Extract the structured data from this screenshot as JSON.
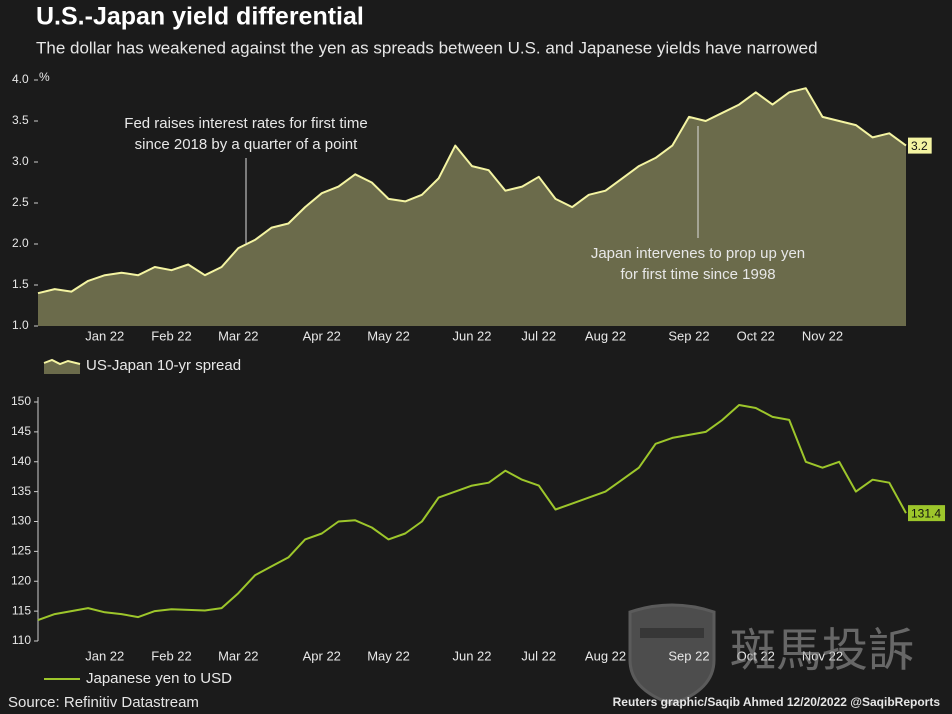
{
  "header": {
    "title": "U.S.-Japan yield differential",
    "subtitle": "The dollar has weakened against the yen as spreads between U.S. and Japanese yields have narrowed"
  },
  "chart_data": [
    {
      "type": "area",
      "y_unit": "%",
      "categories": [
        null,
        null,
        null,
        null,
        "Jan 22",
        null,
        null,
        null,
        "Feb 22",
        null,
        null,
        null,
        "Mar 22",
        null,
        null,
        null,
        null,
        "Apr 22",
        null,
        null,
        null,
        "May 22",
        null,
        null,
        null,
        null,
        "Jun 22",
        null,
        null,
        null,
        "Jul 22",
        null,
        null,
        null,
        "Aug 22",
        null,
        null,
        null,
        null,
        "Sep 22",
        null,
        null,
        null,
        "Oct 22",
        null,
        null,
        null,
        "Nov 22",
        null,
        null,
        null,
        null,
        null
      ],
      "series": [
        {
          "name": "US-Japan 10-yr spread",
          "color": "#f4f4a2",
          "fill": "#6b6b4b",
          "values": [
            1.4,
            1.45,
            1.42,
            1.55,
            1.62,
            1.65,
            1.62,
            1.72,
            1.68,
            1.75,
            1.62,
            1.72,
            1.95,
            2.05,
            2.2,
            2.25,
            2.45,
            2.62,
            2.7,
            2.85,
            2.75,
            2.55,
            2.52,
            2.6,
            2.8,
            3.2,
            2.95,
            2.9,
            2.65,
            2.7,
            2.82,
            2.55,
            2.45,
            2.6,
            2.65,
            2.8,
            2.95,
            3.05,
            3.2,
            3.55,
            3.5,
            3.6,
            3.7,
            3.85,
            3.7,
            3.85,
            3.9,
            3.55,
            3.5,
            3.45,
            3.3,
            3.35,
            3.2
          ]
        }
      ],
      "ylim": [
        1,
        4
      ],
      "yticks": [
        {
          "value": 1,
          "label": "1.0"
        },
        1.5,
        {
          "value": 2,
          "label": "2.0"
        },
        2.5,
        {
          "value": 3,
          "label": "3.0"
        },
        3.5,
        {
          "value": 4,
          "label": "4.0"
        }
      ],
      "annotations": [
        {
          "text": [
            "Fed raises interest rates for first time",
            "since 2018 by a quarter of a point"
          ]
        },
        {
          "text": [
            "Japan intervenes to prop up yen",
            "for first time since 1998"
          ]
        }
      ]
    },
    {
      "type": "line",
      "categories": [
        null,
        null,
        null,
        null,
        "Jan 22",
        null,
        null,
        null,
        "Feb 22",
        null,
        null,
        null,
        "Mar 22",
        null,
        null,
        null,
        null,
        "Apr 22",
        null,
        null,
        null,
        "May 22",
        null,
        null,
        null,
        null,
        "Jun 22",
        null,
        null,
        null,
        "Jul 22",
        null,
        null,
        null,
        "Aug 22",
        null,
        null,
        null,
        null,
        "Sep 22",
        null,
        null,
        null,
        "Oct 22",
        null,
        null,
        null,
        "Nov 22",
        null,
        null,
        null,
        null,
        null
      ],
      "series": [
        {
          "name": "Japanese yen to USD",
          "color": "#9dc62b",
          "values": [
            113.5,
            114.5,
            115,
            115.5,
            114.8,
            114.5,
            114,
            115,
            115.3,
            115.2,
            115.1,
            115.5,
            118,
            121,
            122.5,
            124,
            127,
            128,
            130,
            130.2,
            129,
            127,
            128,
            130,
            134,
            135,
            136,
            136.5,
            138.5,
            137,
            136,
            132,
            133,
            134,
            135,
            137,
            139,
            143,
            144,
            144.5,
            145,
            147,
            149.5,
            149,
            147.5,
            147,
            140,
            139,
            140,
            135,
            137,
            136.5,
            131.4
          ]
        }
      ],
      "ylim": [
        110,
        150
      ],
      "yticks": [
        110,
        115,
        120,
        125,
        130,
        135,
        140,
        145,
        150
      ]
    }
  ],
  "footer": {
    "source": "Source: Refinitiv Datastream",
    "credit": "Reuters graphic/Saqib Ahmed 12/20/2022 @SaqibReports"
  },
  "watermark": "斑馬投訴"
}
